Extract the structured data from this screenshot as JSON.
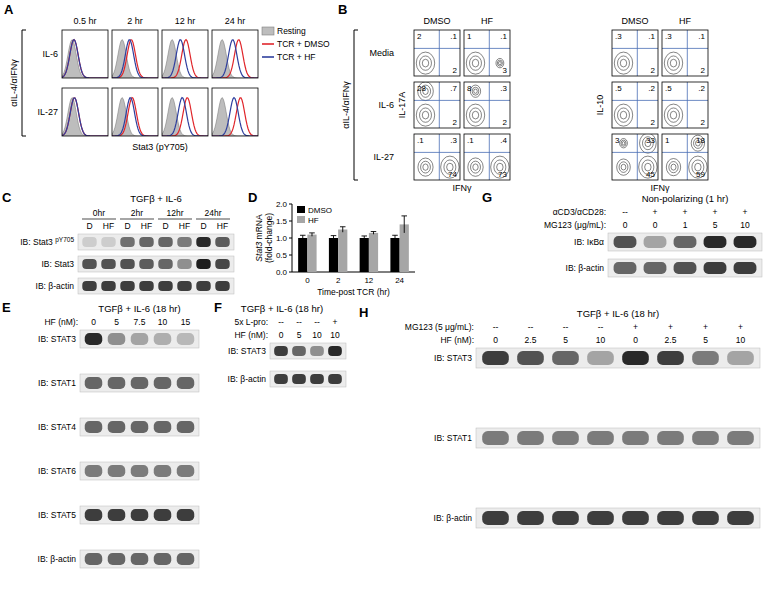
{
  "panels": {
    "A": {
      "label": "A",
      "condition": "αIL-4/αIFNγ",
      "times": [
        "0.5 hr",
        "2 hr",
        "12 hr",
        "24 hr"
      ],
      "rows": [
        {
          "name": "IL-6",
          "resting": [
            22,
            22,
            22,
            22
          ],
          "dmso": [
            26,
            42,
            52,
            58
          ],
          "hf": [
            26,
            38,
            40,
            45
          ]
        },
        {
          "name": "IL-27",
          "resting": [
            22,
            22,
            22,
            22
          ],
          "dmso": [
            27,
            44,
            55,
            62
          ],
          "hf": [
            27,
            40,
            44,
            48
          ]
        }
      ],
      "x_label": "Stat3 (pY705)",
      "legend": [
        {
          "name": "Resting",
          "color": "#bdbdbd"
        },
        {
          "name": "TCR + DMSO",
          "color": "#e0262b"
        },
        {
          "name": "TCR + HF",
          "color": "#2f3f9e"
        }
      ]
    },
    "B": {
      "label": "B",
      "condition": "αIL-4/αIFNγ",
      "rows": [
        "Media",
        "IL-6",
        "IL-27"
      ],
      "blocks": [
        {
          "columns": [
            "DMSO",
            "HF"
          ],
          "y_label": "IL-17A",
          "x_label": "IFNγ",
          "cells": [
            [
              [
                2,
                {
                  "value": 0.1,
                  "label": ".1"
                },
                2
              ],
              [
                1,
                {
                  "value": 0.1,
                  "label": ".1"
                },
                3
              ]
            ],
            [
              [
                28,
                {
                  "value": 0.7,
                  "label": ".7"
                },
                2
              ],
              [
                8,
                {
                  "value": 0.3,
                  "label": ".3"
                },
                2
              ]
            ],
            [
              [
                {
                  "value": 0.1,
                  "label": ".1"
                },
                {
                  "value": 0.3,
                  "label": ".3"
                },
                74
              ],
              [
                {
                  "value": 0.1,
                  "label": ".1"
                },
                {
                  "value": 0.4,
                  "label": ".4"
                },
                73
              ]
            ]
          ]
        },
        {
          "columns": [
            "DMSO",
            "HF"
          ],
          "y_label": "IL-10",
          "x_label": "IFNγ",
          "cells": [
            [
              [
                {
                  "value": 0.3,
                  "label": ".3"
                },
                {
                  "value": 0.1,
                  "label": ".1"
                },
                2
              ],
              [
                {
                  "value": 0.3,
                  "label": ".3"
                },
                {
                  "value": 0.1,
                  "label": ".1"
                },
                2
              ]
            ],
            [
              [
                {
                  "value": 0.5,
                  "label": ".5"
                },
                {
                  "value": 0.2,
                  "label": ".2"
                },
                2
              ],
              [
                {
                  "value": 0.5,
                  "label": ".5"
                },
                {
                  "value": 0.2,
                  "label": ".2"
                },
                2
              ]
            ],
            [
              [
                3,
                33,
                45
              ],
              [
                1,
                18,
                59
              ]
            ]
          ]
        }
      ]
    },
    "C": {
      "label": "C",
      "title": "TGFβ + IL-6",
      "groups": [
        "0hr",
        "2hr",
        "12hr",
        "24hr"
      ],
      "lane_headers": [
        {
          "values": [
            "D",
            "HF",
            "D",
            "HF",
            "D",
            "HF",
            "D",
            "HF"
          ]
        }
      ],
      "rows": [
        {
          "name": "IB: Stat3",
          "superscript": "pY705",
          "bands": [
            0.1,
            0.1,
            0.55,
            0.6,
            0.6,
            0.5,
            0.9,
            0.65
          ]
        },
        {
          "name": "IB: Stat3",
          "bands": [
            0.7,
            0.7,
            0.7,
            0.65,
            0.6,
            0.4,
            0.95,
            0.75
          ]
        },
        {
          "name": "IB: β-actin",
          "bands": [
            0.8,
            0.8,
            0.8,
            0.8,
            0.8,
            0.8,
            0.8,
            0.8
          ]
        }
      ]
    },
    "E": {
      "label": "E",
      "title": "TGFβ + IL-6 (18 hr)",
      "lane_headers": [
        {
          "name": "HF (nM):",
          "values": [
            "0",
            "5",
            "7.5",
            "10",
            "15"
          ]
        }
      ],
      "rows": [
        {
          "name": "IB: STAT3",
          "bands": [
            0.9,
            0.4,
            0.3,
            0.25,
            0.2
          ]
        },
        {
          "name": "IB: STAT1",
          "bands": [
            0.6,
            0.6,
            0.6,
            0.6,
            0.6
          ]
        },
        {
          "name": "IB: STAT4",
          "bands": [
            0.6,
            0.6,
            0.6,
            0.6,
            0.6
          ]
        },
        {
          "name": "IB: STAT6",
          "bands": [
            0.5,
            0.5,
            0.5,
            0.5,
            0.5
          ]
        },
        {
          "name": "IB: STAT5",
          "bands": [
            0.8,
            0.8,
            0.8,
            0.8,
            0.8
          ]
        },
        {
          "name": "IB: β-actin",
          "bands": [
            0.6,
            0.6,
            0.6,
            0.6,
            0.6
          ]
        }
      ]
    },
    "F": {
      "label": "F",
      "title": "TGFβ + IL-6 (18 hr)",
      "lane_headers": [
        {
          "name": "5x L-pro:",
          "values": [
            "--",
            "--",
            "--",
            "+"
          ]
        },
        {
          "name": "HF (nM):",
          "values": [
            "0",
            "5",
            "10",
            "10"
          ]
        }
      ],
      "rows": [
        {
          "name": "IB: STAT3",
          "bands": [
            0.8,
            0.6,
            0.4,
            0.9
          ]
        },
        {
          "name": "IB: β-actin",
          "bands": [
            0.8,
            0.8,
            0.8,
            0.8
          ]
        }
      ]
    },
    "G": {
      "label": "G",
      "title": "Non-polarizing (1 hr)",
      "lane_headers": [
        {
          "name": "αCD3/αCD28:",
          "values": [
            "--",
            "+",
            "+",
            "+",
            "+"
          ]
        },
        {
          "name": "MG123 (μg/mL):",
          "values": [
            "0",
            "0",
            "1",
            "5",
            "10"
          ]
        }
      ],
      "rows": [
        {
          "name": "IB: IκBα",
          "bands": [
            0.7,
            0.3,
            0.6,
            0.9,
            0.9
          ]
        },
        {
          "name": "IB: β-actin",
          "bands": [
            0.6,
            0.6,
            0.7,
            0.8,
            0.8
          ]
        }
      ]
    },
    "H": {
      "label": "H",
      "title": "TGFβ + IL-6 (18 hr)",
      "lane_headers": [
        {
          "name": "MG123 (5 μg/mL):",
          "values": [
            "--",
            "--",
            "--",
            "--",
            "+",
            "+",
            "+",
            "+"
          ]
        },
        {
          "name": "HF (nM):",
          "values": [
            "0",
            "2.5",
            "5",
            "10",
            "0",
            "2.5",
            "5",
            "10"
          ]
        }
      ],
      "rows": [
        {
          "name": "IB: STAT3",
          "bands": [
            0.8,
            0.7,
            0.6,
            0.3,
            0.9,
            0.8,
            0.5,
            0.3
          ]
        },
        {
          "name": "IB: STAT1",
          "bands": [
            0.5,
            0.5,
            0.5,
            0.5,
            0.5,
            0.5,
            0.5,
            0.5
          ]
        },
        {
          "name": "IB: β-actin",
          "bands": [
            0.8,
            0.8,
            0.8,
            0.8,
            0.8,
            0.8,
            0.8,
            0.8
          ]
        }
      ]
    }
  },
  "chart_data": {
    "type": "bar",
    "title": "D",
    "y_label": "Stat3 mRNA (fold-change)",
    "x_label": "Time-post TCR (hr)",
    "categories": [
      "0",
      "2",
      "12",
      "24"
    ],
    "series": [
      {
        "name": "DMSO",
        "color": "#000000",
        "values": [
          1.0,
          1.0,
          1.0,
          1.0
        ],
        "errors": [
          0.08,
          0.07,
          0.06,
          0.08
        ]
      },
      {
        "name": "HF",
        "color": "#a6a6a6",
        "values": [
          1.1,
          1.25,
          1.15,
          1.4
        ],
        "errors": [
          0.05,
          0.08,
          0.04,
          0.25
        ]
      }
    ],
    "ylim": [
      0,
      2
    ],
    "yticks": [
      {
        "value": 0,
        "label": "0.0"
      },
      0.5,
      {
        "value": 1,
        "label": "1.0"
      },
      1.5,
      {
        "value": 2,
        "label": "2.0"
      }
    ],
    "legend": "upper left"
  }
}
